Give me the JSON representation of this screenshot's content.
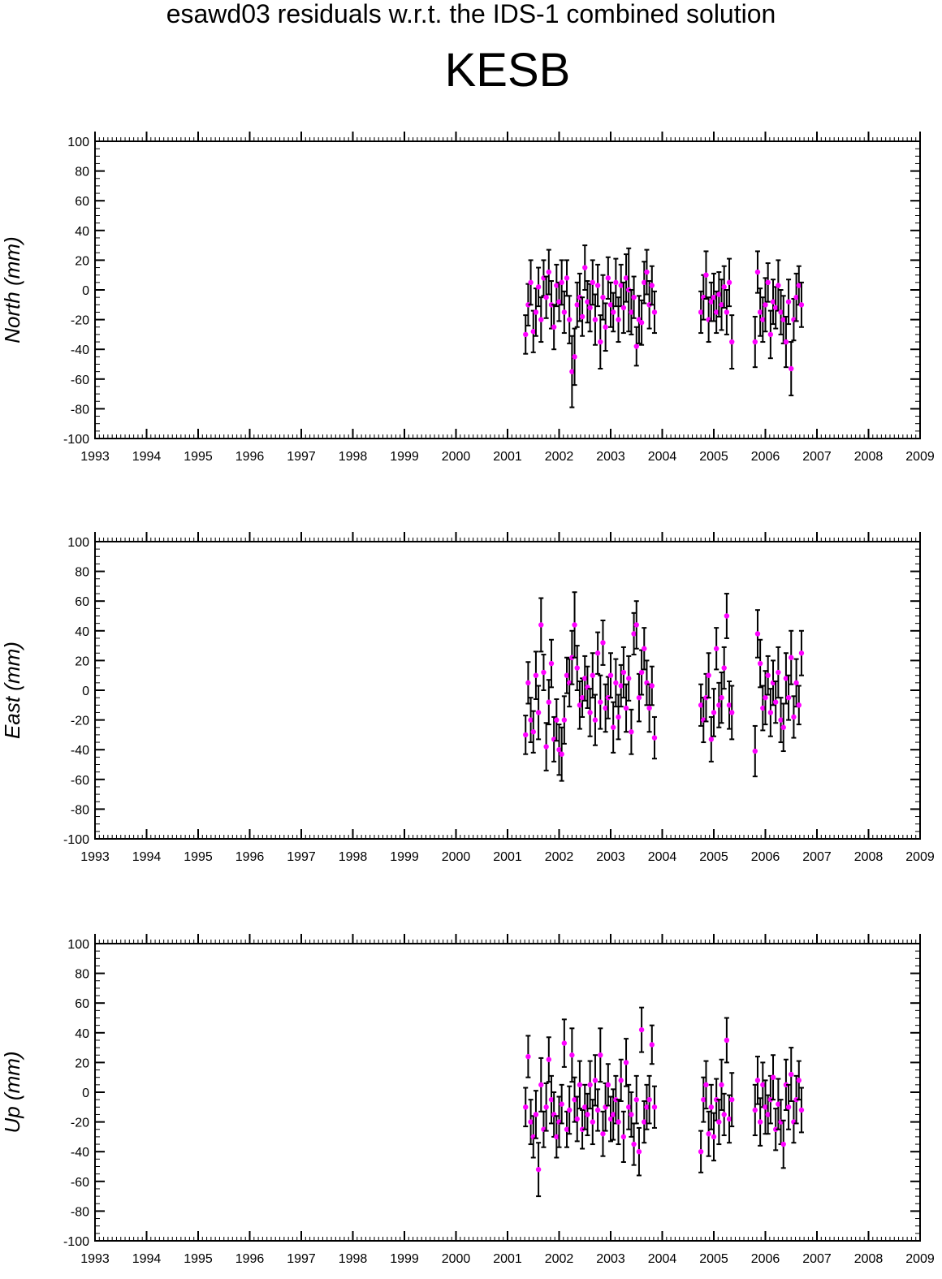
{
  "title": "esawd03 residuals w.r.t. the IDS-1 combined solution",
  "station": "KESB",
  "colors": {
    "point": "#ff00ff",
    "errorbar": "#000000",
    "frame": "#000000"
  },
  "chart_data": [
    {
      "type": "scatter",
      "ylabel": "North (mm)",
      "xlim": [
        1993,
        2009
      ],
      "ylim": [
        -100,
        100
      ],
      "x_ticks": [
        "1993",
        "1994",
        "1995",
        "1996",
        "1997",
        "1998",
        "1999",
        "2000",
        "2001",
        "2002",
        "2003",
        "2004",
        "2005",
        "2006",
        "2007",
        "2008",
        "2009"
      ],
      "y_ticks": [
        "100",
        "80",
        "60",
        "40",
        "20",
        "0",
        "-20",
        "-40",
        "-60",
        "-80",
        "-100"
      ],
      "x": [
        2001.35,
        2001.4,
        2001.45,
        2001.5,
        2001.55,
        2001.6,
        2001.65,
        2001.7,
        2001.75,
        2001.8,
        2001.85,
        2001.9,
        2001.95,
        2002.0,
        2002.05,
        2002.1,
        2002.15,
        2002.2,
        2002.25,
        2002.3,
        2002.35,
        2002.4,
        2002.45,
        2002.5,
        2002.55,
        2002.6,
        2002.65,
        2002.7,
        2002.75,
        2002.8,
        2002.85,
        2002.9,
        2002.95,
        2003.0,
        2003.05,
        2003.1,
        2003.15,
        2003.2,
        2003.25,
        2003.3,
        2003.35,
        2003.4,
        2003.45,
        2003.5,
        2003.55,
        2003.6,
        2003.65,
        2003.7,
        2003.75,
        2003.8,
        2003.85,
        2004.75,
        2004.8,
        2004.85,
        2004.9,
        2004.95,
        2005.0,
        2005.05,
        2005.1,
        2005.15,
        2005.2,
        2005.25,
        2005.3,
        2005.35,
        2005.8,
        2005.85,
        2005.9,
        2005.95,
        2006.0,
        2006.05,
        2006.1,
        2006.15,
        2006.2,
        2006.25,
        2006.3,
        2006.35,
        2006.4,
        2006.45,
        2006.5,
        2006.55,
        2006.6,
        2006.65,
        2006.7
      ],
      "y": [
        -30,
        -10,
        5,
        -28,
        -15,
        2,
        -20,
        8,
        -5,
        12,
        -10,
        -25,
        3,
        -8,
        5,
        -15,
        8,
        -20,
        -55,
        -45,
        -10,
        -5,
        -18,
        15,
        -8,
        -12,
        5,
        -20,
        3,
        -35,
        -5,
        -25,
        8,
        -10,
        -15,
        5,
        -20,
        3,
        -12,
        8,
        0,
        -15,
        -5,
        -38,
        -20,
        -22,
        5,
        12,
        -10,
        3,
        -15,
        -15,
        -5,
        10,
        -20,
        -8,
        -5,
        -15,
        -3,
        -10,
        2,
        -15,
        5,
        -35,
        -35,
        12,
        -15,
        -20,
        -10,
        5,
        -30,
        -8,
        -12,
        3,
        -15,
        -20,
        -35,
        -8,
        -53,
        -20,
        -5,
        3,
        -10
      ],
      "err": [
        13,
        14,
        15,
        14,
        16,
        13,
        15,
        12,
        14,
        15,
        16,
        15,
        14,
        13,
        15,
        14,
        12,
        16,
        24,
        19,
        15,
        16,
        13,
        15,
        14,
        16,
        15,
        17,
        14,
        18,
        15,
        16,
        14,
        15,
        13,
        16,
        15,
        14,
        17,
        16,
        28,
        15,
        14,
        13,
        16,
        15,
        14,
        15,
        16,
        13,
        14,
        14,
        15,
        16,
        15,
        13,
        16,
        14,
        15,
        17,
        14,
        15,
        16,
        18,
        17,
        14,
        16,
        15,
        18,
        13,
        16,
        15,
        14,
        17,
        15,
        16,
        17,
        15,
        18,
        14,
        16,
        13,
        15
      ]
    },
    {
      "type": "scatter",
      "ylabel": "East (mm)",
      "xlim": [
        1993,
        2009
      ],
      "ylim": [
        -100,
        100
      ],
      "x_ticks": [
        "1993",
        "1994",
        "1995",
        "1996",
        "1997",
        "1998",
        "1999",
        "2000",
        "2001",
        "2002",
        "2003",
        "2004",
        "2005",
        "2006",
        "2007",
        "2008",
        "2009"
      ],
      "y_ticks": [
        "100",
        "80",
        "60",
        "40",
        "20",
        "0",
        "-20",
        "-40",
        "-60",
        "-80",
        "-100"
      ],
      "x": [
        2001.35,
        2001.4,
        2001.45,
        2001.5,
        2001.55,
        2001.6,
        2001.65,
        2001.7,
        2001.75,
        2001.8,
        2001.85,
        2001.9,
        2001.95,
        2002.0,
        2002.05,
        2002.1,
        2002.15,
        2002.2,
        2002.25,
        2002.3,
        2002.35,
        2002.4,
        2002.45,
        2002.5,
        2002.55,
        2002.6,
        2002.65,
        2002.7,
        2002.75,
        2002.8,
        2002.85,
        2002.9,
        2002.95,
        2003.0,
        2003.05,
        2003.1,
        2003.15,
        2003.2,
        2003.25,
        2003.3,
        2003.35,
        2003.4,
        2003.45,
        2003.5,
        2003.55,
        2003.6,
        2003.65,
        2003.7,
        2003.75,
        2003.8,
        2003.85,
        2004.75,
        2004.8,
        2004.85,
        2004.9,
        2004.95,
        2005.0,
        2005.05,
        2005.1,
        2005.15,
        2005.2,
        2005.25,
        2005.3,
        2005.35,
        2005.8,
        2005.85,
        2005.9,
        2005.95,
        2006.0,
        2006.05,
        2006.1,
        2006.15,
        2006.2,
        2006.25,
        2006.3,
        2006.35,
        2006.4,
        2006.45,
        2006.5,
        2006.55,
        2006.6,
        2006.65,
        2006.7
      ],
      "y": [
        -30,
        5,
        -20,
        -28,
        10,
        -15,
        44,
        12,
        -38,
        -8,
        18,
        -33,
        -20,
        -40,
        -43,
        -20,
        10,
        5,
        22,
        44,
        15,
        -10,
        -5,
        8,
        2,
        -15,
        10,
        -20,
        25,
        -8,
        32,
        -12,
        -5,
        10,
        -25,
        5,
        -18,
        3,
        12,
        -12,
        8,
        -28,
        38,
        44,
        -5,
        12,
        28,
        5,
        -12,
        3,
        -32,
        -10,
        -20,
        -5,
        10,
        -33,
        -15,
        28,
        -10,
        -5,
        15,
        50,
        -10,
        -15,
        -41,
        38,
        18,
        -12,
        -5,
        10,
        -15,
        5,
        -8,
        12,
        -20,
        -25,
        8,
        -5,
        22,
        -18,
        5,
        -10,
        25
      ],
      "err": [
        13,
        14,
        15,
        14,
        16,
        18,
        18,
        12,
        16,
        15,
        16,
        15,
        14,
        17,
        18,
        16,
        12,
        16,
        18,
        22,
        15,
        16,
        13,
        15,
        14,
        16,
        15,
        17,
        14,
        18,
        15,
        16,
        14,
        15,
        17,
        16,
        15,
        14,
        17,
        16,
        15,
        15,
        14,
        16,
        16,
        15,
        14,
        15,
        16,
        13,
        14,
        14,
        15,
        16,
        15,
        15,
        16,
        14,
        15,
        17,
        14,
        15,
        16,
        18,
        17,
        16,
        16,
        15,
        18,
        13,
        16,
        15,
        14,
        17,
        15,
        16,
        17,
        15,
        18,
        14,
        16,
        13,
        15
      ]
    },
    {
      "type": "scatter",
      "ylabel": "Up (mm)",
      "xlim": [
        1993,
        2009
      ],
      "ylim": [
        -100,
        100
      ],
      "x_ticks": [
        "1993",
        "1994",
        "1995",
        "1996",
        "1997",
        "1998",
        "1999",
        "2000",
        "2001",
        "2002",
        "2003",
        "2004",
        "2005",
        "2006",
        "2007",
        "2008",
        "2009"
      ],
      "y_ticks": [
        "100",
        "80",
        "60",
        "40",
        "20",
        "0",
        "-20",
        "-40",
        "-60",
        "-80",
        "-100"
      ],
      "x": [
        2001.35,
        2001.4,
        2001.45,
        2001.5,
        2001.55,
        2001.6,
        2001.65,
        2001.7,
        2001.75,
        2001.8,
        2001.85,
        2001.9,
        2001.95,
        2002.0,
        2002.05,
        2002.1,
        2002.15,
        2002.2,
        2002.25,
        2002.3,
        2002.35,
        2002.4,
        2002.45,
        2002.5,
        2002.55,
        2002.6,
        2002.65,
        2002.7,
        2002.75,
        2002.8,
        2002.85,
        2002.9,
        2002.95,
        2003.0,
        2003.05,
        2003.1,
        2003.15,
        2003.2,
        2003.25,
        2003.3,
        2003.35,
        2003.4,
        2003.45,
        2003.5,
        2003.55,
        2003.6,
        2003.65,
        2003.7,
        2003.75,
        2003.8,
        2003.85,
        2004.75,
        2004.8,
        2004.85,
        2004.9,
        2004.95,
        2005.0,
        2005.05,
        2005.1,
        2005.15,
        2005.2,
        2005.25,
        2005.3,
        2005.35,
        2005.8,
        2005.85,
        2005.9,
        2005.95,
        2006.0,
        2006.05,
        2006.1,
        2006.15,
        2006.2,
        2006.25,
        2006.3,
        2006.35,
        2006.4,
        2006.45,
        2006.5,
        2006.55,
        2006.6,
        2006.65,
        2006.7
      ],
      "y": [
        -10,
        24,
        -20,
        -30,
        -15,
        -52,
        5,
        -25,
        -10,
        22,
        -5,
        -15,
        -30,
        -20,
        -8,
        33,
        -25,
        -12,
        25,
        -5,
        -18,
        5,
        -25,
        -10,
        -15,
        5,
        -20,
        8,
        -12,
        25,
        -28,
        -10,
        5,
        -18,
        -15,
        -5,
        -20,
        8,
        -30,
        20,
        -10,
        -15,
        -35,
        -5,
        -40,
        42,
        -20,
        -10,
        -5,
        32,
        -10,
        -40,
        -5,
        5,
        -28,
        -10,
        -30,
        -5,
        -20,
        5,
        -15,
        35,
        -18,
        -5,
        -12,
        8,
        -20,
        5,
        -10,
        -15,
        -5,
        10,
        -25,
        -8,
        -20,
        -35,
        5,
        -10,
        12,
        -20,
        -5,
        8,
        -12
      ],
      "err": [
        13,
        14,
        15,
        14,
        16,
        18,
        18,
        12,
        16,
        15,
        16,
        15,
        14,
        17,
        13,
        16,
        12,
        16,
        18,
        15,
        15,
        16,
        13,
        15,
        14,
        16,
        15,
        17,
        14,
        18,
        15,
        16,
        14,
        15,
        17,
        16,
        15,
        14,
        17,
        16,
        15,
        15,
        14,
        16,
        16,
        15,
        14,
        15,
        16,
        13,
        14,
        14,
        15,
        16,
        15,
        15,
        16,
        14,
        15,
        17,
        14,
        15,
        16,
        18,
        17,
        16,
        16,
        15,
        18,
        13,
        16,
        15,
        14,
        17,
        15,
        16,
        17,
        15,
        18,
        14,
        16,
        13,
        15
      ]
    }
  ]
}
